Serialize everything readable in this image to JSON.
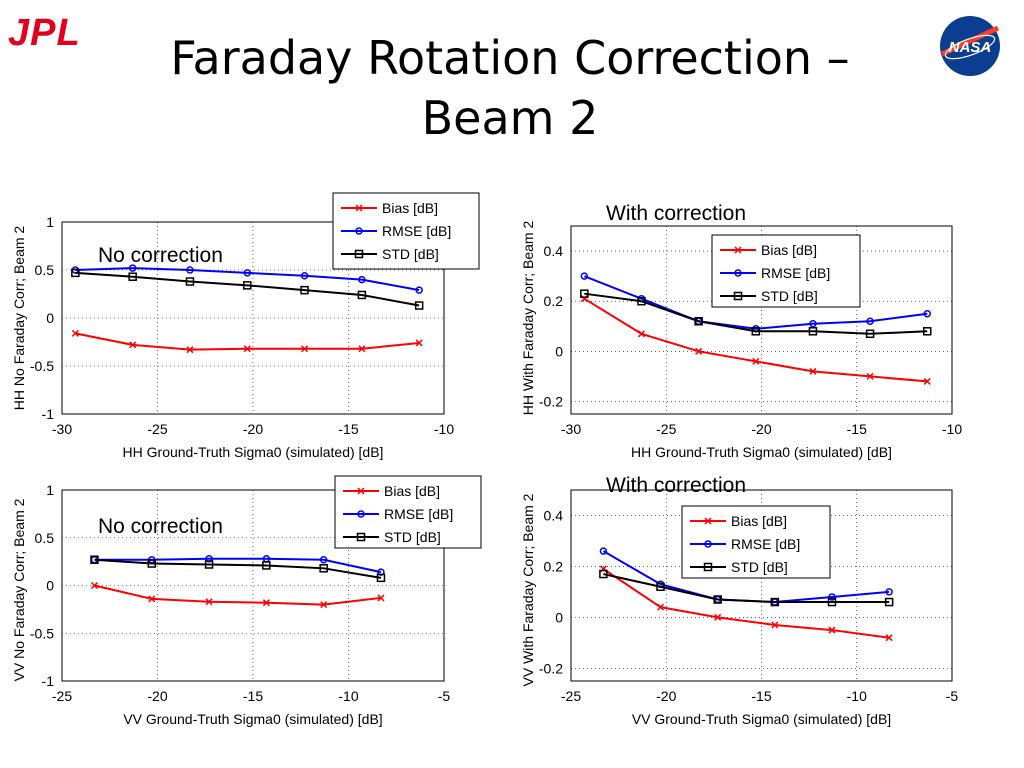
{
  "header": {
    "logo_left": "JPL",
    "title": "Faraday Rotation Correction – Beam 2",
    "logo_right": "NASA"
  },
  "colors": {
    "bias": "#ff0000",
    "rmse": "#0000ff",
    "std": "#000000",
    "logo_red": "#e4001b",
    "nasa_blue": "#0b3d91"
  },
  "chart_data": [
    {
      "type": "line",
      "annotation": "No correction",
      "xlabel": "HH Ground-Truth Sigma0 (simulated) [dB]",
      "ylabel": "HH No Faraday Corr; Beam 2",
      "xlim": [
        -30,
        -10
      ],
      "ylim": [
        -1,
        1
      ],
      "xticks": [
        -30,
        -25,
        -20,
        -15,
        -10
      ],
      "yticks": [
        -1,
        -0.5,
        0,
        0.5,
        1
      ],
      "ytick_labels": [
        "-1",
        "-0.5",
        "0",
        "0.5",
        "1"
      ],
      "grid": true,
      "legend": "top-right",
      "x": [
        -29.3,
        -26.3,
        -23.3,
        -20.3,
        -17.3,
        -14.3,
        -11.3
      ],
      "series": [
        {
          "name": "Bias [dB]",
          "values": [
            -0.16,
            -0.28,
            -0.33,
            -0.32,
            -0.32,
            -0.32,
            -0.26
          ]
        },
        {
          "name": "RMSE [dB]",
          "values": [
            0.5,
            0.52,
            0.5,
            0.47,
            0.44,
            0.4,
            0.29
          ]
        },
        {
          "name": "STD [dB]",
          "values": [
            0.47,
            0.43,
            0.38,
            0.34,
            0.29,
            0.24,
            0.13
          ]
        }
      ]
    },
    {
      "type": "line",
      "annotation": "With correction",
      "xlabel": "HH Ground-Truth Sigma0 (simulated) [dB]",
      "ylabel": "HH With Faraday Corr; Beam 2",
      "xlim": [
        -30,
        -10
      ],
      "ylim": [
        -0.25,
        0.5
      ],
      "xticks": [
        -30,
        -25,
        -20,
        -15,
        -10
      ],
      "yticks": [
        -0.2,
        0,
        0.2,
        0.4
      ],
      "ytick_labels": [
        "-0.2",
        "0",
        "0.2",
        "0.4"
      ],
      "grid": true,
      "legend": "top-right",
      "x": [
        -29.3,
        -26.3,
        -23.3,
        -20.3,
        -17.3,
        -14.3,
        -11.3
      ],
      "series": [
        {
          "name": "Bias [dB]",
          "values": [
            0.21,
            0.07,
            0.0,
            -0.04,
            -0.08,
            -0.1,
            -0.12
          ]
        },
        {
          "name": "RMSE [dB]",
          "values": [
            0.3,
            0.21,
            0.12,
            0.09,
            0.11,
            0.12,
            0.15
          ]
        },
        {
          "name": "STD [dB]",
          "values": [
            0.23,
            0.2,
            0.12,
            0.08,
            0.08,
            0.07,
            0.08
          ]
        }
      ]
    },
    {
      "type": "line",
      "annotation": "No correction",
      "xlabel": "VV Ground-Truth Sigma0 (simulated) [dB]",
      "ylabel": "VV No Faraday Corr; Beam 2",
      "xlim": [
        -25,
        -5
      ],
      "ylim": [
        -1,
        1
      ],
      "xticks": [
        -25,
        -20,
        -15,
        -10,
        -5
      ],
      "yticks": [
        -1,
        -0.5,
        0,
        0.5,
        1
      ],
      "ytick_labels": [
        "-1",
        "-0.5",
        "0",
        "0.5",
        "1"
      ],
      "grid": true,
      "legend": "top-right",
      "x": [
        -23.3,
        -20.3,
        -17.3,
        -14.3,
        -11.3,
        -8.3
      ],
      "series": [
        {
          "name": "Bias [dB]",
          "values": [
            0.0,
            -0.14,
            -0.17,
            -0.18,
            -0.2,
            -0.13
          ]
        },
        {
          "name": "RMSE [dB]",
          "values": [
            0.27,
            0.27,
            0.28,
            0.28,
            0.27,
            0.14
          ]
        },
        {
          "name": "STD [dB]",
          "values": [
            0.27,
            0.23,
            0.22,
            0.21,
            0.18,
            0.08
          ]
        }
      ]
    },
    {
      "type": "line",
      "annotation": "With correction",
      "xlabel": "VV Ground-Truth Sigma0 (simulated) [dB]",
      "ylabel": "VV With Faraday Corr; Beam 2",
      "xlim": [
        -25,
        -5
      ],
      "ylim": [
        -0.25,
        0.5
      ],
      "xticks": [
        -25,
        -20,
        -15,
        -10,
        -5
      ],
      "yticks": [
        -0.2,
        0,
        0.2,
        0.4
      ],
      "ytick_labels": [
        "-0.2",
        "0",
        "0.2",
        "0.4"
      ],
      "grid": true,
      "legend": "top-right",
      "x": [
        -23.3,
        -20.3,
        -17.3,
        -14.3,
        -11.3,
        -8.3
      ],
      "series": [
        {
          "name": "Bias [dB]",
          "values": [
            0.19,
            0.04,
            0.0,
            -0.03,
            -0.05,
            -0.08
          ]
        },
        {
          "name": "RMSE [dB]",
          "values": [
            0.26,
            0.13,
            0.07,
            0.06,
            0.08,
            0.1
          ]
        },
        {
          "name": "STD [dB]",
          "values": [
            0.17,
            0.12,
            0.07,
            0.06,
            0.06,
            0.06
          ]
        }
      ]
    }
  ]
}
